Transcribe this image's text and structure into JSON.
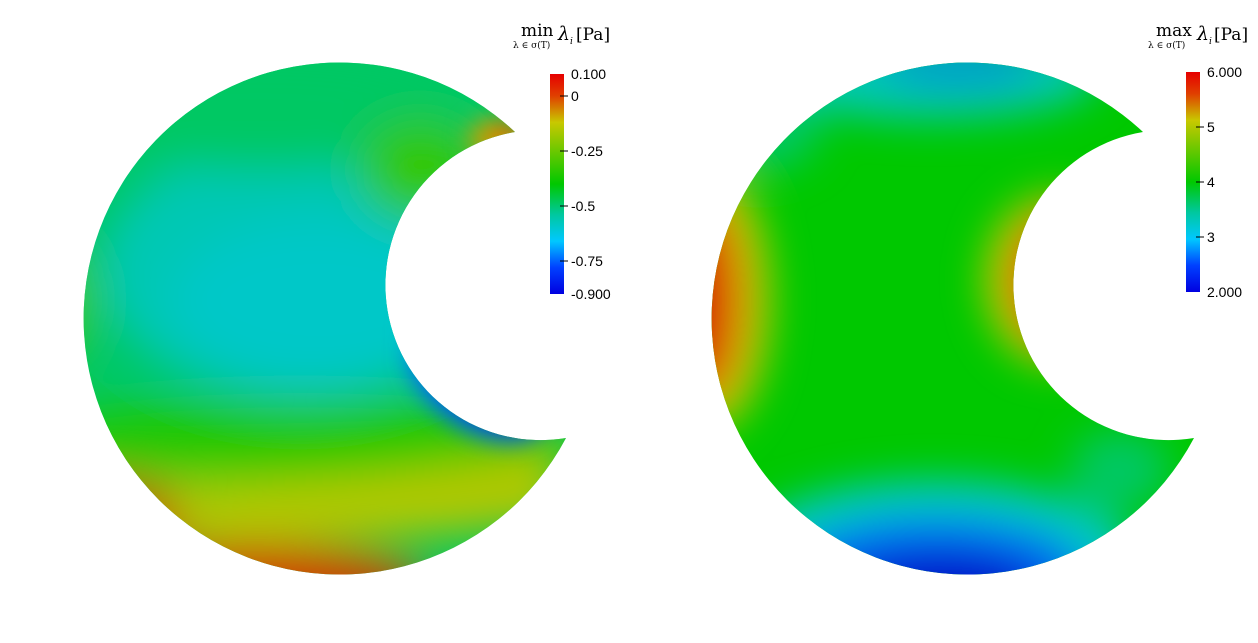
{
  "panels": [
    {
      "id": "min",
      "title": {
        "op": "min",
        "sub": "λ",
        "sub_tail": " ∈ σ(T)",
        "lambda": "λ",
        "lambda_sub": "i",
        "unit": "[Pa]"
      },
      "colorbar": {
        "range": [
          -0.9,
          0.1
        ],
        "ticks": [
          {
            "value": 0.1,
            "label": "0.100",
            "endpoint": true
          },
          {
            "value": 0,
            "label": "0"
          },
          {
            "value": -0.25,
            "label": "-0.25"
          },
          {
            "value": -0.5,
            "label": "-0.5"
          },
          {
            "value": -0.75,
            "label": "-0.75"
          },
          {
            "value": -0.9,
            "label": "-0.900",
            "endpoint": true
          }
        ]
      }
    },
    {
      "id": "max",
      "title": {
        "op": "max",
        "sub": "λ",
        "sub_tail": " ∈ σ(T)",
        "lambda": "λ",
        "lambda_sub": "i",
        "unit": "[Pa]"
      },
      "colorbar": {
        "range": [
          2,
          6
        ],
        "ticks": [
          {
            "value": 6,
            "label": "6.000",
            "endpoint": true
          },
          {
            "value": 5,
            "label": "5"
          },
          {
            "value": 4,
            "label": "4"
          },
          {
            "value": 3,
            "label": "3"
          },
          {
            "value": 2,
            "label": "2.000",
            "endpoint": true
          }
        ]
      }
    }
  ],
  "colormap": [
    "#0000c8",
    "#0000ff",
    "#00c8ff",
    "#00c8c8",
    "#00c800",
    "#64c800",
    "#c8c800",
    "#c89600",
    "#e04000",
    "#c80000"
  ]
}
